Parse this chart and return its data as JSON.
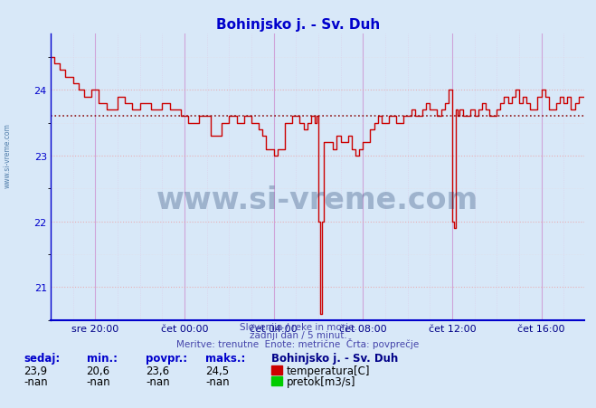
{
  "title": "Bohinjsko j. - Sv. Duh",
  "title_color": "#0000cc",
  "bg_color": "#d8e8f8",
  "plot_bg_color": "#d8e8f8",
  "line_color": "#cc0000",
  "avg_value": 23.6,
  "avg_line_color": "#cc0000",
  "y_min": 20.5,
  "y_max": 24.85,
  "y_ticks": [
    21,
    22,
    23,
    24
  ],
  "x_labels": [
    "sre 20:00",
    "čet 00:00",
    "čet 04:00",
    "čet 08:00",
    "čet 12:00",
    "čet 16:00"
  ],
  "xlabel_color": "#000088",
  "ylabel_color": "#0000cc",
  "footer_line1": "Slovenija / reke in morje.",
  "footer_line2": "zadnji dan / 5 minut.",
  "footer_line3": "Meritve: trenutne  Enote: metrične  Črta: povprečje",
  "footer_color": "#4444aa",
  "stats_label_color": "#0000cc",
  "stats_value_color": "#000000",
  "legend_title": "Bohinjsko j. - Sv. Duh",
  "legend_title_color": "#000088",
  "sedaj": "23,9",
  "min_val": "20,6",
  "povpr": "23,6",
  "maks": "24,5",
  "sedaj2": "-nan",
  "min_val2": "-nan",
  "povpr2": "-nan",
  "maks2": "-nan",
  "watermark": "www.si-vreme.com",
  "watermark_color": "#1a3a6a"
}
